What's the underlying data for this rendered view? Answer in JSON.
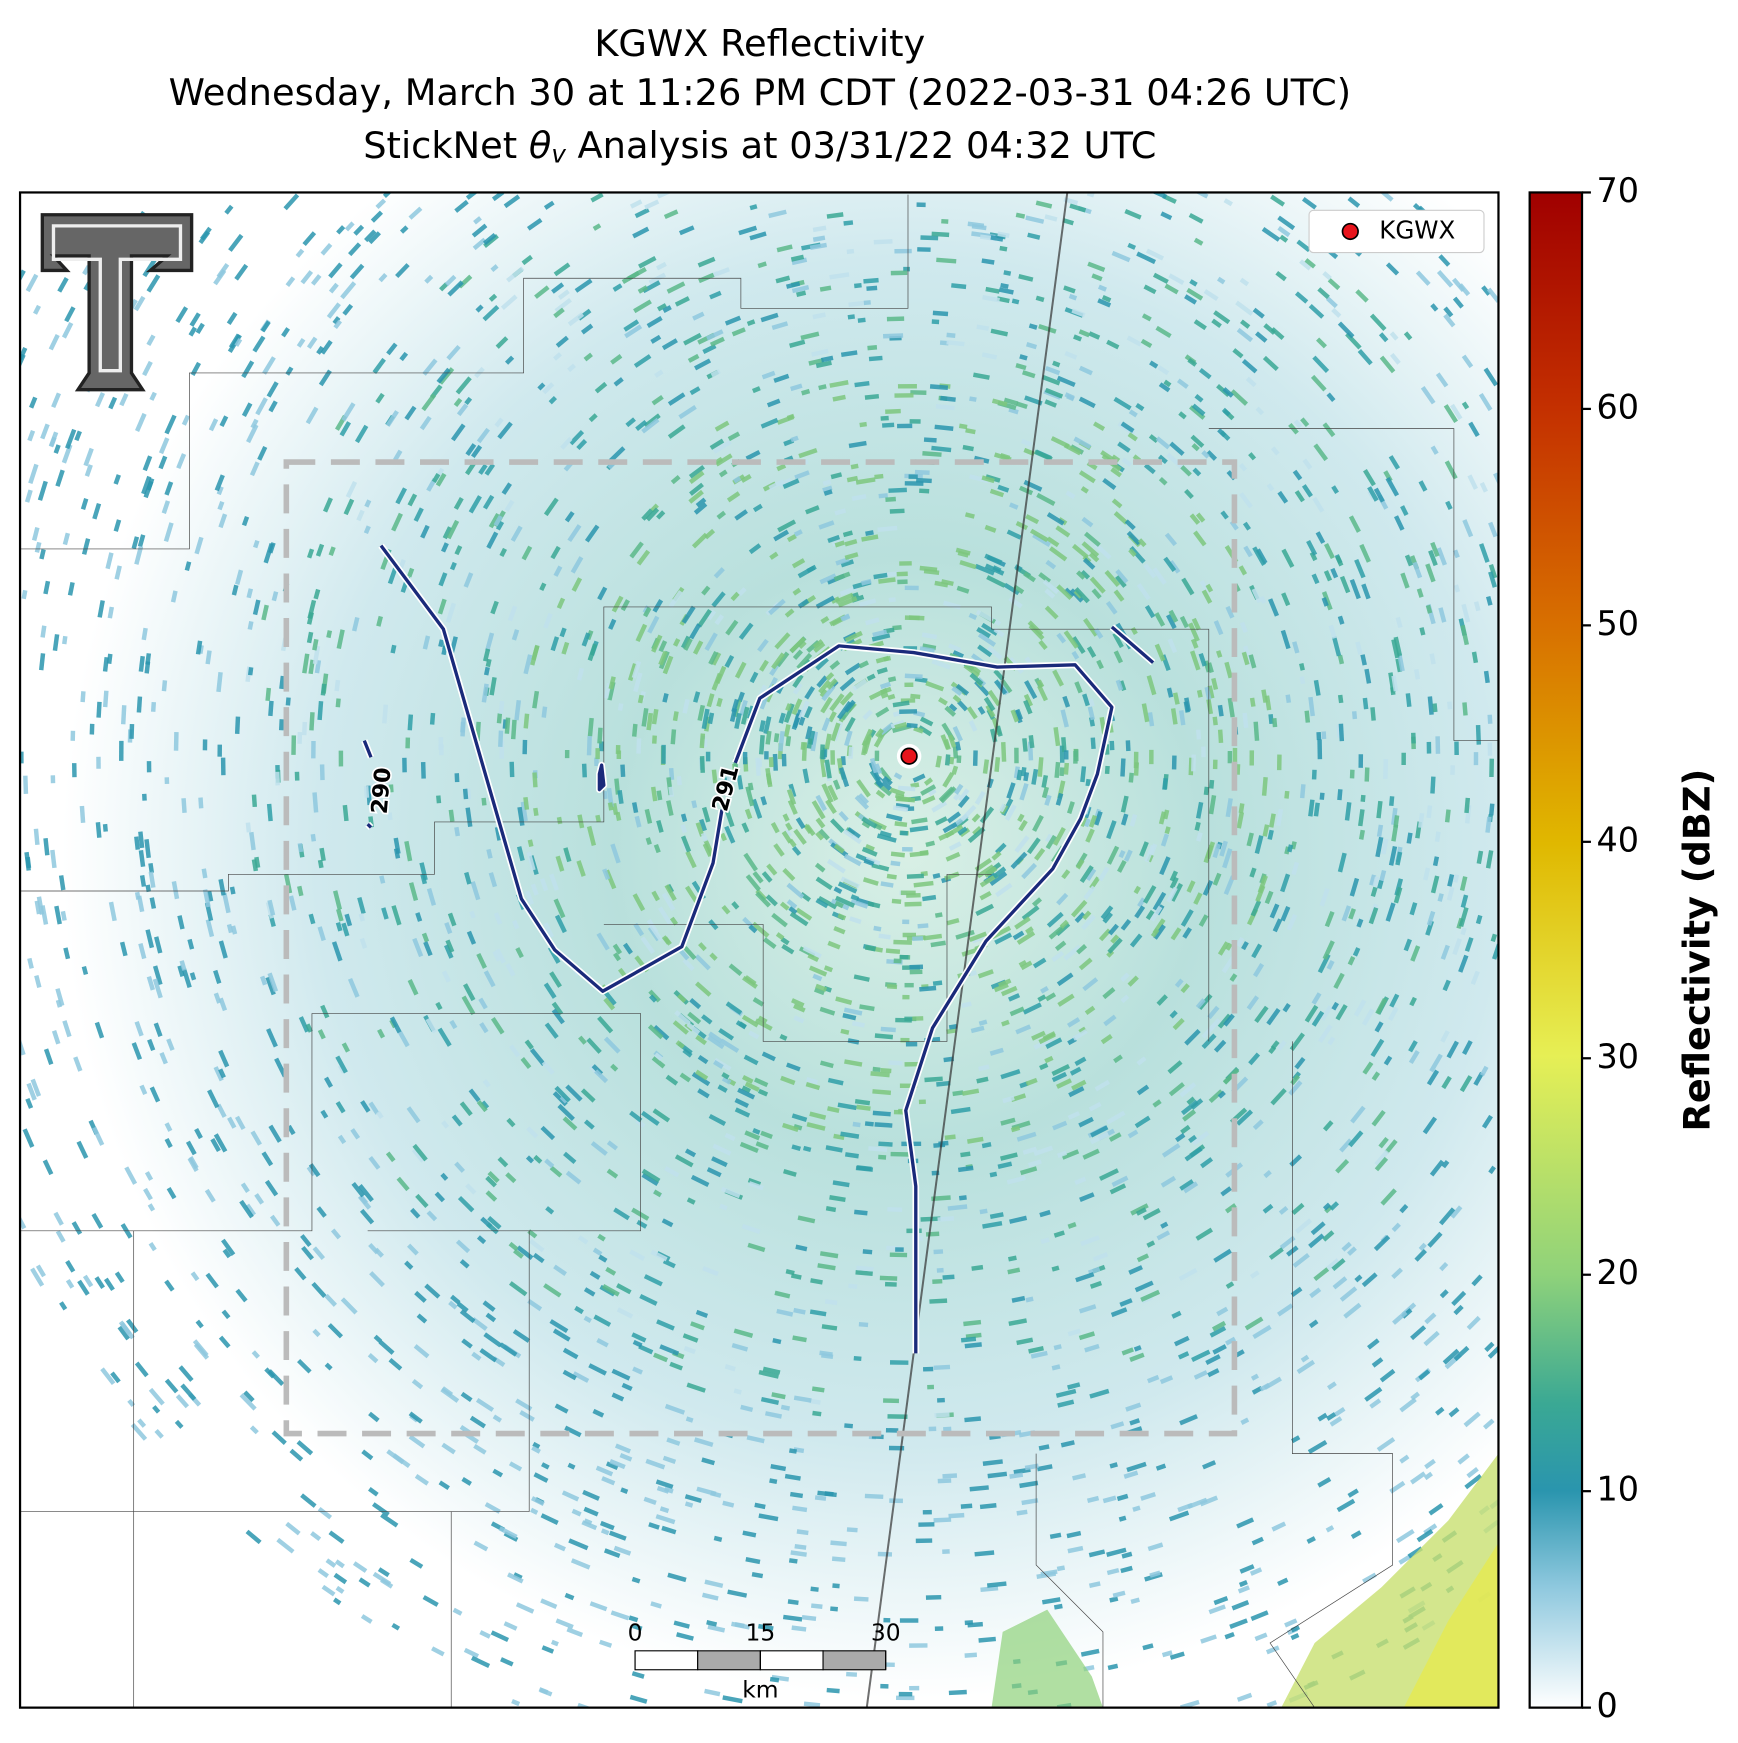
{
  "title": {
    "line1": "KGWX Reflectivity",
    "line2": "Wednesday, March 30 at 11:26 PM CDT (2022-03-31 04:26 UTC)",
    "line3": {
      "prefix": "StickNet ",
      "symbol": "θ",
      "subscript": "v",
      "suffix": " Analysis at 03/31/22 04:32 UTC"
    }
  },
  "legend": {
    "label": "KGWX"
  },
  "contour_labels": [
    290,
    291
  ],
  "scale_bar": {
    "ticks": [
      0,
      15,
      30
    ],
    "unit": "km"
  },
  "colorbar": {
    "label": "Reflectivity (dBZ)",
    "lim": [
      0,
      70
    ],
    "ticks": [
      0,
      10,
      20,
      30,
      40,
      50,
      60,
      70
    ]
  }
}
